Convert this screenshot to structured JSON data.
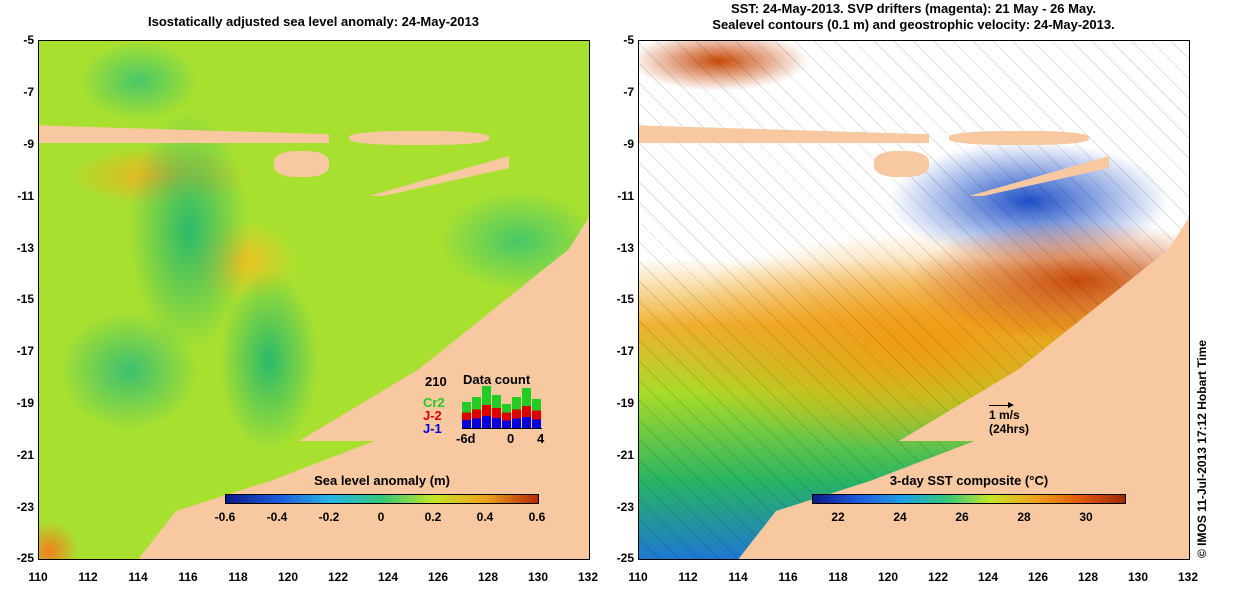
{
  "left_panel": {
    "title": "Isostatically adjusted sea level anomaly: 24-May-2013",
    "colorbar": {
      "title": "Sea level anomaly (m)",
      "labels": [
        "-0.6",
        "-0.4",
        "-0.2",
        "0",
        "0.2",
        "0.4",
        "0.6"
      ],
      "gradient_colors": [
        "#0a1a8c",
        "#1e5adc",
        "#28b4e6",
        "#32c878",
        "#c8e628",
        "#f0a01e",
        "#b4280a"
      ]
    },
    "data_count": {
      "title": "Data count",
      "total": "210",
      "series": [
        {
          "label": "Cr2",
          "color": "#22cc22"
        },
        {
          "label": "J-2",
          "color": "#dd0000"
        },
        {
          "label": "J-1",
          "color": "#0000dd"
        }
      ],
      "x_labels": [
        "-6d",
        "0",
        "4"
      ]
    }
  },
  "right_panel": {
    "title_line1": "SST: 24-May-2013. SVP drifters (magenta): 21 May - 26 May.",
    "title_line2": "Sealevel contours (0.1 m) and geostrophic velocity: 24-May-2013.",
    "colorbar": {
      "title": "3-day SST composite (°C)",
      "labels": [
        "22",
        "24",
        "26",
        "28",
        "30"
      ],
      "gradient_colors": [
        "#0a1a8c",
        "#1e5adc",
        "#1ea0e6",
        "#32c878",
        "#c8e628",
        "#f0a01e",
        "#e05a0a",
        "#a0280a"
      ]
    },
    "velocity_legend": {
      "line1": "1 m/s",
      "line2": "(24hrs)"
    }
  },
  "axes": {
    "y_labels": [
      "-5",
      "-7",
      "-9",
      "-11",
      "-13",
      "-15",
      "-17",
      "-19",
      "-21",
      "-23",
      "-25"
    ],
    "x_labels": [
      "110",
      "112",
      "114",
      "116",
      "118",
      "120",
      "122",
      "124",
      "126",
      "128",
      "130",
      "132"
    ]
  },
  "credit": "© IMOS 11-Jul-2013 17:12 Hobart Time",
  "colors": {
    "land": "#f8c8a0",
    "sla_base": "#a8e030",
    "missing": "#ffffff"
  }
}
